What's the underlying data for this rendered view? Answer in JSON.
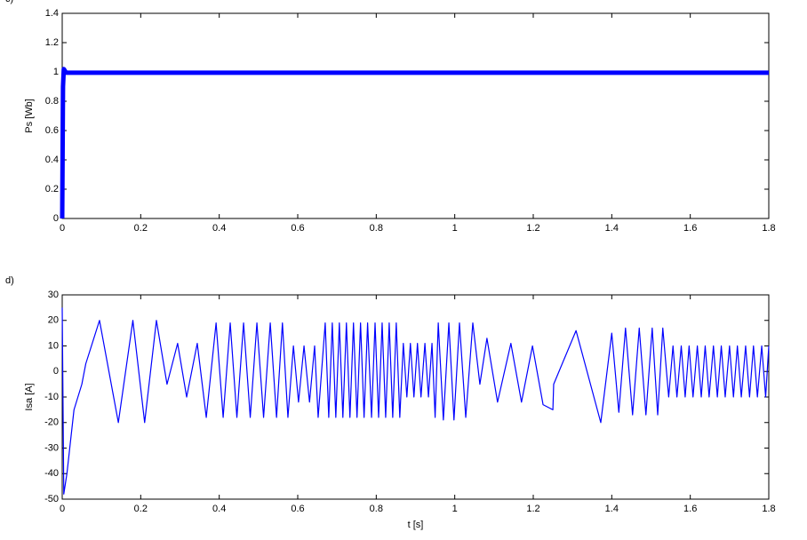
{
  "chart_data": [
    {
      "type": "line",
      "label": "c)",
      "ylabel": "Ps   [Wb]",
      "x": [
        0,
        0.002,
        0.004,
        0.01,
        1.8
      ],
      "series": [
        {
          "color": "#0000ff",
          "values": [
            0,
            0.9,
            1.02,
            0.995,
            0.995
          ]
        }
      ],
      "xlim": [
        0,
        1.8
      ],
      "xticks": [
        0,
        0.2,
        0.4,
        0.6,
        0.8,
        1,
        1.2,
        1.4,
        1.6,
        1.8
      ],
      "ylim": [
        0,
        1.4
      ],
      "yticks": [
        0,
        0.2,
        0.4,
        0.6,
        0.8,
        1,
        1.2,
        1.4
      ]
    },
    {
      "type": "line",
      "label": "d)",
      "ylabel": "Isa   [A]",
      "xlabel": "t   [s]",
      "x": [
        0,
        0.004,
        0.012,
        0.03,
        0.05,
        0.06,
        0.095,
        0.143,
        0.18,
        0.21,
        0.24,
        0.267,
        0.294,
        0.317,
        0.344,
        0.367,
        0.392,
        0.41,
        0.428,
        0.445,
        0.462,
        0.479,
        0.496,
        0.513,
        0.53,
        0.546,
        0.561,
        0.575,
        0.589,
        0.602,
        0.616,
        0.63,
        0.643,
        0.652,
        0.67,
        0.679,
        0.688,
        0.697,
        0.706,
        0.715,
        0.724,
        0.733,
        0.742,
        0.751,
        0.76,
        0.769,
        0.778,
        0.788,
        0.797,
        0.806,
        0.815,
        0.824,
        0.833,
        0.842,
        0.851,
        0.86,
        0.869,
        0.878,
        0.887,
        0.896,
        0.905,
        0.914,
        0.924,
        0.933,
        0.942,
        0.95,
        0.958,
        0.971,
        0.985,
        0.998,
        1.012,
        1.028,
        1.046,
        1.064,
        1.082,
        1.109,
        1.143,
        1.17,
        1.198,
        1.225,
        1.25,
        1.252,
        1.309,
        1.372,
        1.4,
        1.418,
        1.435,
        1.453,
        1.47,
        1.487,
        1.503,
        1.517,
        1.53,
        1.545,
        1.556,
        1.566,
        1.577,
        1.587,
        1.597,
        1.607,
        1.618,
        1.628,
        1.638,
        1.648,
        1.659,
        1.669,
        1.679,
        1.689,
        1.7,
        1.71,
        1.72,
        1.73,
        1.741,
        1.751,
        1.761,
        1.771,
        1.782,
        1.792,
        1.8
      ],
      "series": [
        {
          "color": "#0000ff",
          "values": [
            25,
            -48,
            -40,
            -15,
            -5,
            3,
            20,
            -20,
            20,
            -20,
            20,
            -5,
            11,
            -10,
            11,
            -18,
            19,
            -18,
            19,
            -18,
            19,
            -18,
            19,
            -18,
            19,
            -18,
            19,
            -18,
            10,
            -12,
            10,
            -12,
            10,
            -18,
            19,
            -18,
            19,
            -18,
            19,
            -18,
            19,
            -18,
            19,
            -18,
            19,
            -18,
            19,
            -18,
            19,
            -18,
            19,
            -18,
            19,
            -18,
            19,
            -18,
            11,
            -10,
            11,
            -10,
            11,
            -10,
            11,
            -10,
            11,
            -18,
            19,
            -19,
            19,
            -19,
            19,
            -18,
            19,
            -5,
            13,
            -12,
            11,
            -12,
            10,
            -13,
            -15,
            -5,
            16,
            -20,
            15,
            -16,
            17,
            -17,
            17,
            -17,
            17,
            -17,
            17,
            -10,
            10,
            -10,
            10,
            -10,
            10,
            -10,
            10,
            -10,
            10,
            -10,
            10,
            -10,
            10,
            -10,
            10,
            -10,
            10,
            -10,
            10,
            -10,
            10,
            -10,
            10,
            -10,
            10
          ]
        }
      ],
      "xlim": [
        0,
        1.8
      ],
      "xticks": [
        0,
        0.2,
        0.4,
        0.6,
        0.8,
        1,
        1.2,
        1.4,
        1.6,
        1.8
      ],
      "ylim": [
        -50,
        30
      ],
      "yticks": [
        -50,
        -40,
        -30,
        -20,
        -10,
        0,
        10,
        20,
        30
      ]
    }
  ]
}
